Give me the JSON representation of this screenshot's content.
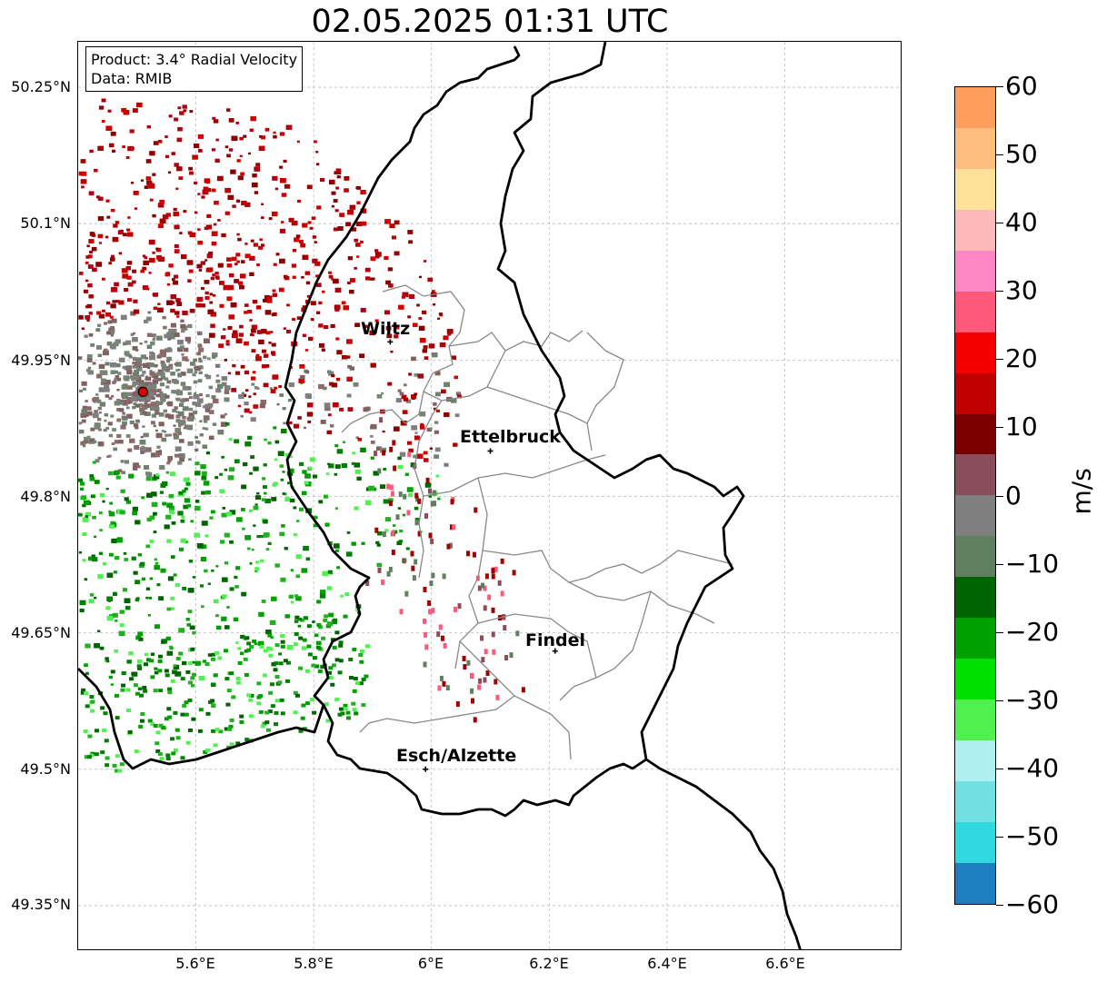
{
  "title": "02.05.2025 01:31 UTC",
  "info_box": {
    "line1": "Product: 3.4° Radial Velocity",
    "line2": "Data: RMIB"
  },
  "latitude_labels": [
    "50.25°N",
    "50.1°N",
    "49.95°N",
    "49.8°N",
    "49.65°N",
    "49.5°N",
    "49.35°N"
  ],
  "longitude_labels": [
    "5.6°E",
    "5.8°E",
    "6°E",
    "6.2°E",
    "6.4°E",
    "6.6°E"
  ],
  "cities": [
    {
      "name": "Wiltz",
      "lon": 5.93,
      "lat": 49.97
    },
    {
      "name": "Ettelbruck",
      "lon": 6.1,
      "lat": 49.85
    },
    {
      "name": "Findel",
      "lon": 6.21,
      "lat": 49.63
    },
    {
      "name": "Esch/Alzette",
      "lon": 5.99,
      "lat": 49.5
    }
  ],
  "radar_site": {
    "lon": 5.51,
    "lat": 49.915
  },
  "colorbar": {
    "unit": "m/s",
    "labels": [
      "60",
      "50",
      "40",
      "30",
      "20",
      "10",
      "0",
      "−10",
      "−20",
      "−30",
      "−40",
      "−50",
      "−60"
    ],
    "colors": [
      "#fd9e5e",
      "#fdbd7e",
      "#fee299",
      "#fdb8b8",
      "#fd86c6",
      "#fd5a7a",
      "#f50000",
      "#c00000",
      "#7a0000",
      "#8a4d5a",
      "#7f7f7f",
      "#5f7f5f",
      "#006400",
      "#00a000",
      "#00e000",
      "#50f050",
      "#aef0f0",
      "#70e0e0",
      "#30d8e0",
      "#1e7ec0"
    ]
  }
}
